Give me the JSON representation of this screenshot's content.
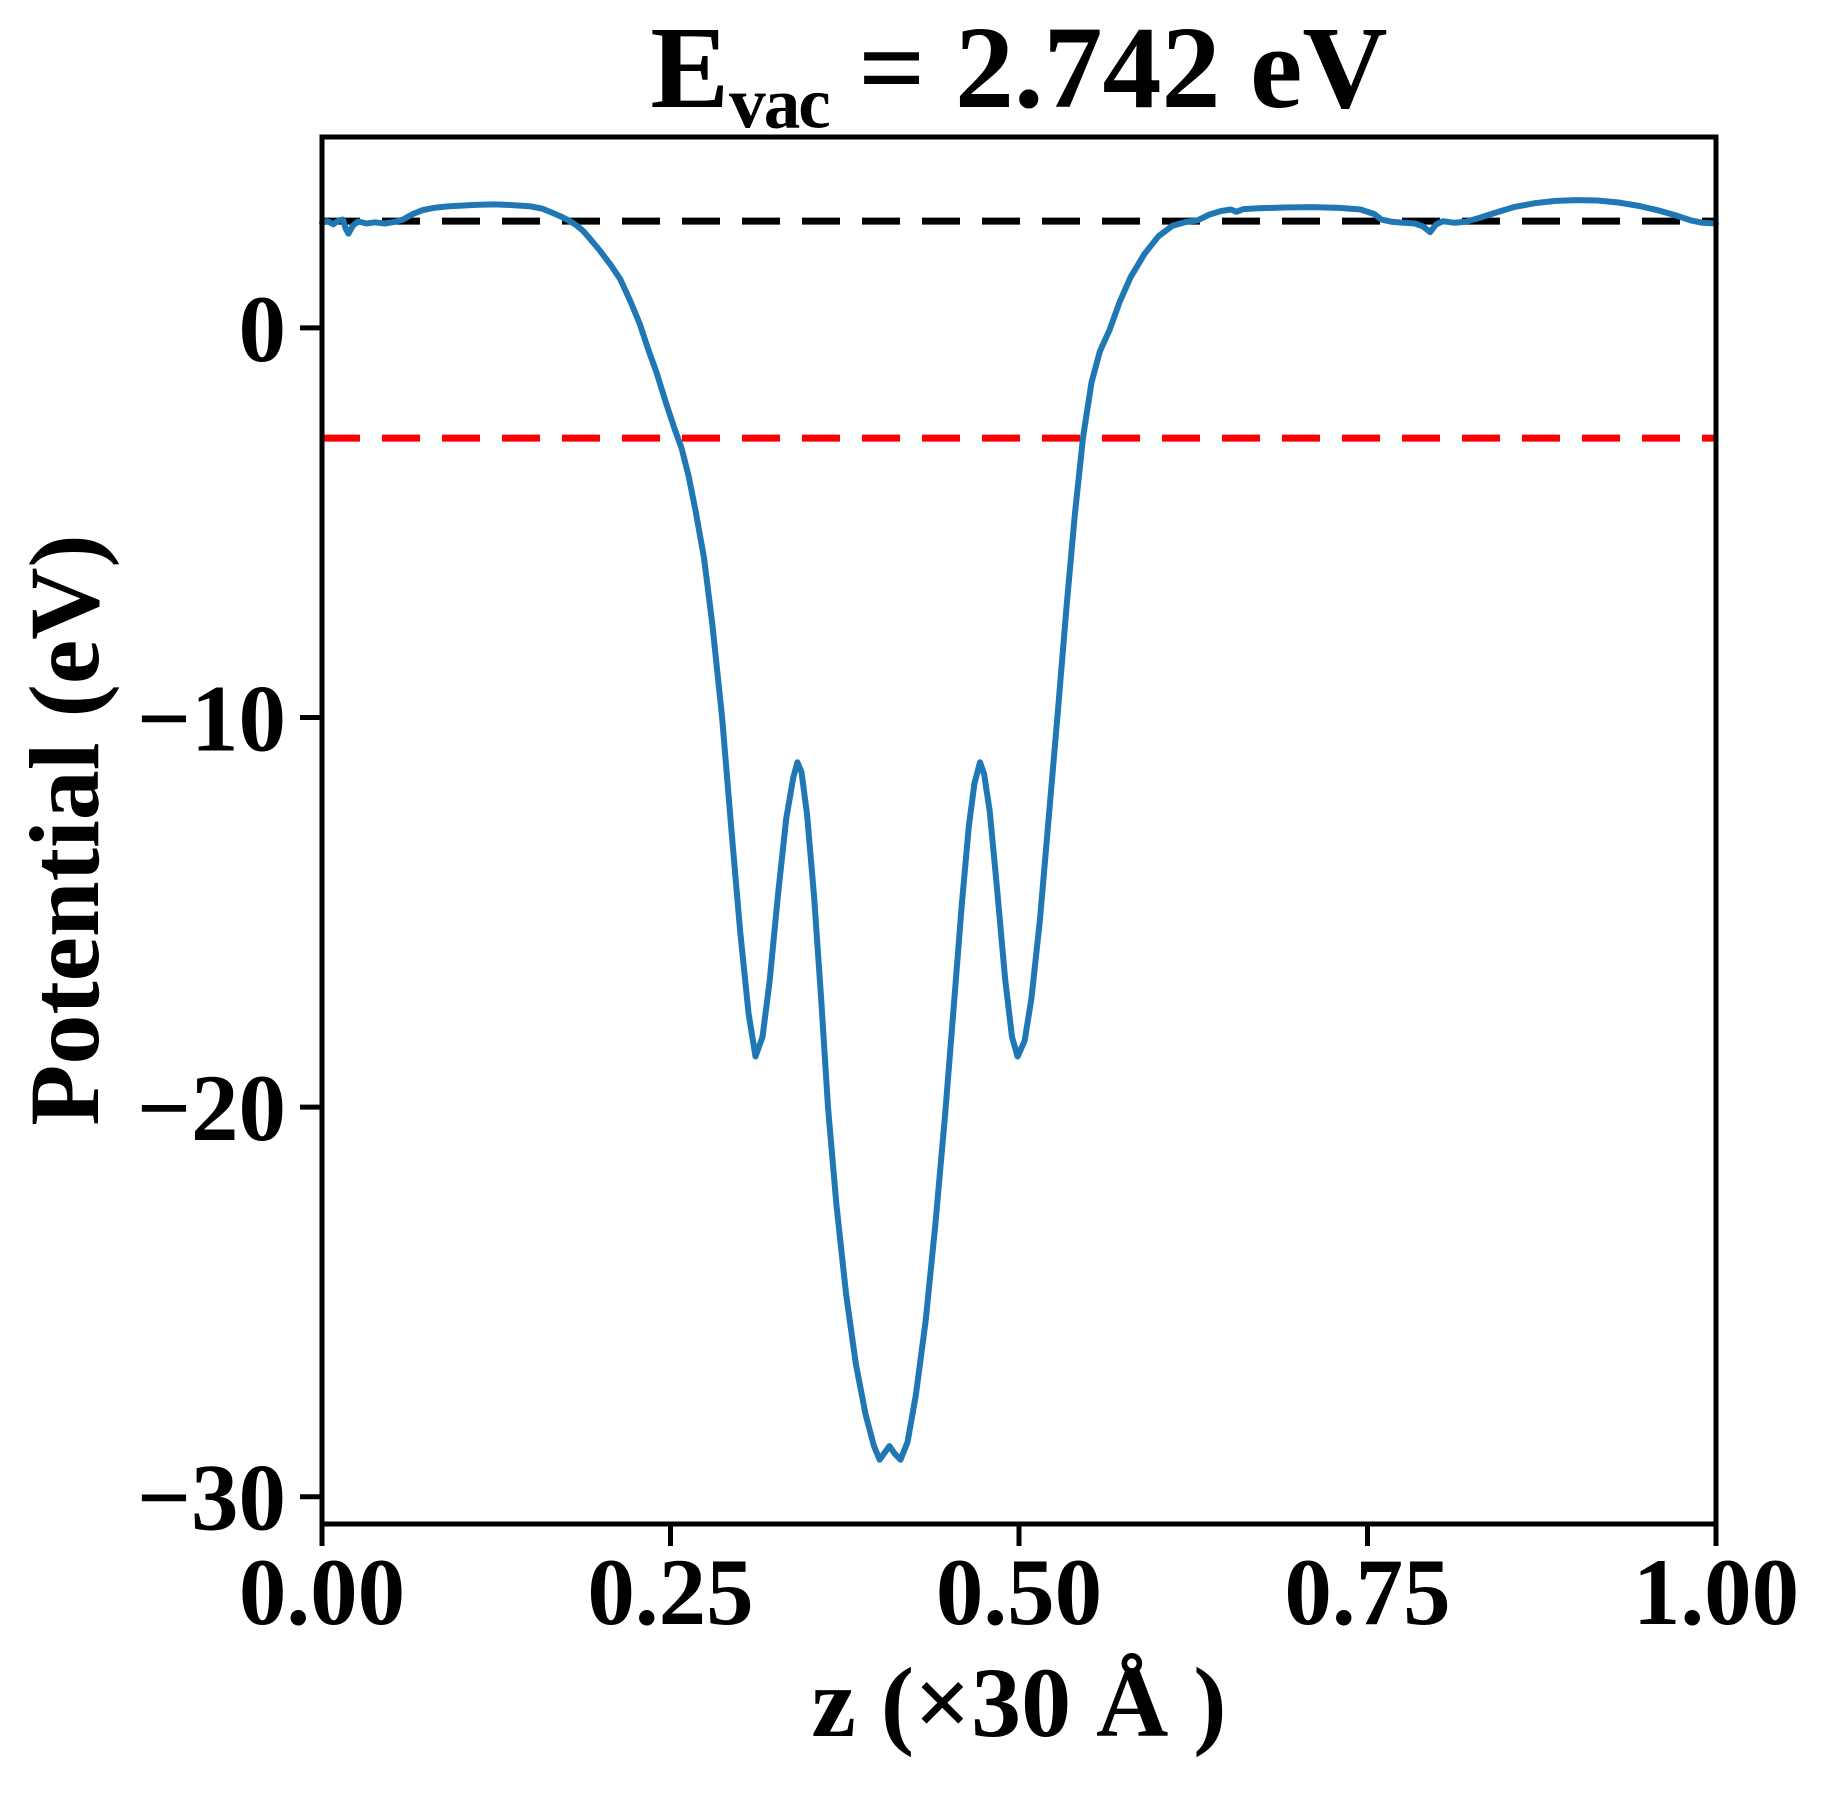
{
  "figure": {
    "title_parts": {
      "symbol": "E",
      "subscript": "vac",
      "rest": " = 2.742 eV"
    },
    "xlabel": "z (×30 Å )",
    "ylabel": "Potential (eV)"
  },
  "chart_data": {
    "type": "line",
    "title": "E_vac = 2.742 eV",
    "xlabel": "z (×30 Å )",
    "ylabel": "Potential (eV)",
    "xlim": [
      0.0,
      1.0
    ],
    "ylim": [
      -30.7,
      4.9
    ],
    "grid": false,
    "legend_position": "none",
    "xticks": [
      {
        "value": 0.0,
        "label": "0.00"
      },
      {
        "value": 0.25,
        "label": "0.25"
      },
      {
        "value": 0.5,
        "label": "0.50"
      },
      {
        "value": 0.75,
        "label": "0.75"
      },
      {
        "value": 1.0,
        "label": "1.00"
      }
    ],
    "yticks": [
      {
        "value": 0,
        "label": "0"
      },
      {
        "value": -10,
        "label": "−10"
      },
      {
        "value": -20,
        "label": "−20"
      },
      {
        "value": -30,
        "label": "−30"
      }
    ],
    "hlines": [
      {
        "name": "vacuum-level-line",
        "y": 2.742,
        "color": "#000000",
        "style": "dashed"
      },
      {
        "name": "fermi-level-line",
        "y": -2.83,
        "color": "#ff0000",
        "style": "dashed"
      }
    ],
    "series": [
      {
        "name": "planar-averaged-potential",
        "color": "#1f77b4",
        "points": [
          [
            0.0,
            2.7
          ],
          [
            0.004,
            2.74
          ],
          [
            0.008,
            2.66
          ],
          [
            0.012,
            2.76
          ],
          [
            0.015,
            2.78
          ],
          [
            0.017,
            2.55
          ],
          [
            0.019,
            2.42
          ],
          [
            0.022,
            2.62
          ],
          [
            0.026,
            2.73
          ],
          [
            0.032,
            2.68
          ],
          [
            0.038,
            2.71
          ],
          [
            0.045,
            2.68
          ],
          [
            0.052,
            2.72
          ],
          [
            0.058,
            2.78
          ],
          [
            0.065,
            2.92
          ],
          [
            0.072,
            3.02
          ],
          [
            0.08,
            3.08
          ],
          [
            0.09,
            3.12
          ],
          [
            0.1,
            3.14
          ],
          [
            0.112,
            3.16
          ],
          [
            0.125,
            3.17
          ],
          [
            0.138,
            3.15
          ],
          [
            0.15,
            3.12
          ],
          [
            0.158,
            3.06
          ],
          [
            0.165,
            2.96
          ],
          [
            0.172,
            2.85
          ],
          [
            0.178,
            2.74
          ],
          [
            0.183,
            2.62
          ],
          [
            0.187,
            2.5
          ],
          [
            0.192,
            2.3
          ],
          [
            0.199,
            2.0
          ],
          [
            0.207,
            1.62
          ],
          [
            0.214,
            1.25
          ],
          [
            0.221,
            0.7
          ],
          [
            0.228,
            0.1
          ],
          [
            0.234,
            -0.55
          ],
          [
            0.24,
            -1.15
          ],
          [
            0.247,
            -1.95
          ],
          [
            0.253,
            -2.6
          ],
          [
            0.258,
            -3.1
          ],
          [
            0.263,
            -3.8
          ],
          [
            0.268,
            -4.7
          ],
          [
            0.274,
            -5.9
          ],
          [
            0.28,
            -7.6
          ],
          [
            0.287,
            -10.0
          ],
          [
            0.294,
            -13.0
          ],
          [
            0.3,
            -15.5
          ],
          [
            0.306,
            -17.6
          ],
          [
            0.311,
            -18.7
          ],
          [
            0.316,
            -18.2
          ],
          [
            0.321,
            -16.8
          ],
          [
            0.327,
            -14.6
          ],
          [
            0.333,
            -12.6
          ],
          [
            0.338,
            -11.55
          ],
          [
            0.341,
            -11.15
          ],
          [
            0.344,
            -11.4
          ],
          [
            0.348,
            -12.5
          ],
          [
            0.353,
            -14.6
          ],
          [
            0.358,
            -17.2
          ],
          [
            0.363,
            -20.0
          ],
          [
            0.369,
            -22.5
          ],
          [
            0.376,
            -24.8
          ],
          [
            0.383,
            -26.6
          ],
          [
            0.39,
            -27.9
          ],
          [
            0.396,
            -28.7
          ],
          [
            0.4,
            -29.05
          ],
          [
            0.404,
            -28.85
          ],
          [
            0.407,
            -28.7
          ],
          [
            0.411,
            -28.9
          ],
          [
            0.415,
            -29.05
          ],
          [
            0.42,
            -28.6
          ],
          [
            0.426,
            -27.4
          ],
          [
            0.433,
            -25.5
          ],
          [
            0.44,
            -23.0
          ],
          [
            0.447,
            -20.2
          ],
          [
            0.453,
            -17.5
          ],
          [
            0.459,
            -14.8
          ],
          [
            0.464,
            -12.8
          ],
          [
            0.468,
            -11.7
          ],
          [
            0.472,
            -11.15
          ],
          [
            0.475,
            -11.45
          ],
          [
            0.479,
            -12.4
          ],
          [
            0.484,
            -14.3
          ],
          [
            0.49,
            -16.7
          ],
          [
            0.495,
            -18.2
          ],
          [
            0.499,
            -18.7
          ],
          [
            0.504,
            -18.3
          ],
          [
            0.509,
            -17.2
          ],
          [
            0.515,
            -15.2
          ],
          [
            0.521,
            -12.7
          ],
          [
            0.528,
            -9.8
          ],
          [
            0.534,
            -7.2
          ],
          [
            0.54,
            -4.8
          ],
          [
            0.546,
            -2.8
          ],
          [
            0.552,
            -1.4
          ],
          [
            0.558,
            -0.6
          ],
          [
            0.565,
            -0.05
          ],
          [
            0.572,
            0.65
          ],
          [
            0.58,
            1.3
          ],
          [
            0.59,
            1.9
          ],
          [
            0.6,
            2.35
          ],
          [
            0.61,
            2.62
          ],
          [
            0.62,
            2.72
          ],
          [
            0.628,
            2.76
          ],
          [
            0.636,
            2.9
          ],
          [
            0.645,
            3.0
          ],
          [
            0.652,
            3.04
          ],
          [
            0.656,
            2.98
          ],
          [
            0.661,
            3.05
          ],
          [
            0.672,
            3.07
          ],
          [
            0.69,
            3.09
          ],
          [
            0.71,
            3.1
          ],
          [
            0.73,
            3.08
          ],
          [
            0.745,
            3.04
          ],
          [
            0.755,
            2.92
          ],
          [
            0.76,
            2.78
          ],
          [
            0.768,
            2.72
          ],
          [
            0.776,
            2.7
          ],
          [
            0.784,
            2.68
          ],
          [
            0.79,
            2.6
          ],
          [
            0.795,
            2.46
          ],
          [
            0.799,
            2.65
          ],
          [
            0.804,
            2.74
          ],
          [
            0.812,
            2.7
          ],
          [
            0.82,
            2.72
          ],
          [
            0.83,
            2.82
          ],
          [
            0.842,
            2.96
          ],
          [
            0.855,
            3.1
          ],
          [
            0.87,
            3.2
          ],
          [
            0.885,
            3.26
          ],
          [
            0.9,
            3.28
          ],
          [
            0.915,
            3.27
          ],
          [
            0.93,
            3.22
          ],
          [
            0.945,
            3.13
          ],
          [
            0.958,
            3.02
          ],
          [
            0.97,
            2.9
          ],
          [
            0.982,
            2.76
          ],
          [
            0.99,
            2.7
          ],
          [
            1.0,
            2.68
          ]
        ]
      }
    ]
  }
}
